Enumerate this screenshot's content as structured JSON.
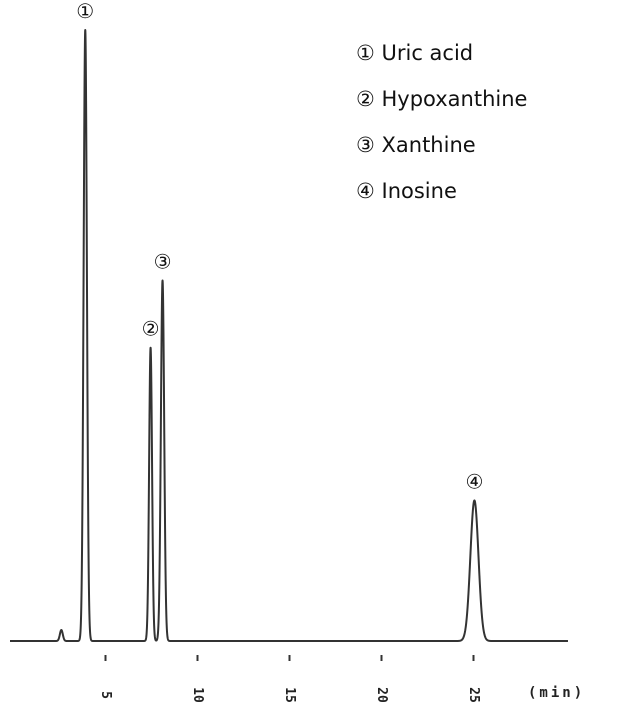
{
  "chart_data": {
    "type": "line",
    "xlabel": "(min)",
    "ylabel": "",
    "xlim": [
      0.5,
      27
    ],
    "ylim": [
      0,
      100
    ],
    "x_ticks": [
      5,
      10,
      15,
      20,
      25
    ],
    "x_tick_labels": [
      "5",
      "10",
      "15",
      "20",
      "25"
    ],
    "baseline_level": 0,
    "peaks": [
      {
        "marker": "①",
        "name": "Uric acid",
        "x": 3.9,
        "height": 100,
        "width": 0.09
      },
      {
        "marker": "②",
        "name": "Hypoxanthine",
        "x": 7.45,
        "height": 48,
        "width": 0.08
      },
      {
        "marker": "③",
        "name": "Xanthine",
        "x": 8.1,
        "height": 59,
        "width": 0.09
      },
      {
        "marker": "④",
        "name": "Inosine",
        "x": 25.05,
        "height": 23,
        "width": 0.22
      }
    ],
    "minor_features": [
      {
        "x": 2.6,
        "height": 1.8,
        "width": 0.08
      }
    ],
    "legend_position": "top-right",
    "line_color": "#333333"
  }
}
